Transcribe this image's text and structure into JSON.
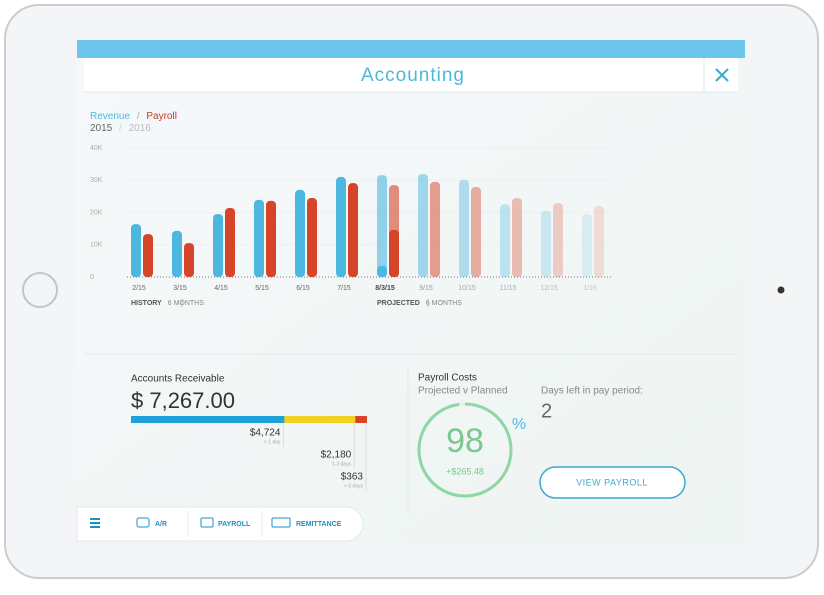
{
  "app": {
    "title": "Accounting"
  },
  "chart_data": {
    "type": "bar",
    "legend": {
      "separator": "/",
      "years": [
        "2015",
        "2016"
      ]
    },
    "categories": [
      "2/15",
      "3/15",
      "4/15",
      "5/15",
      "6/15",
      "7/15",
      "8/3/15",
      "9/15",
      "10/15",
      "11/15",
      "12/15",
      "1/16"
    ],
    "series": [
      {
        "name": "Revenue",
        "color": "#4cb8e0",
        "values": [
          16.4,
          14.3,
          19.5,
          23.9,
          27,
          31,
          31.6,
          31.9,
          30.1,
          22.6,
          20.5,
          19.5
        ],
        "partial_values": [
          null,
          null,
          null,
          null,
          null,
          null,
          3.4,
          null,
          null,
          null,
          null,
          null
        ]
      },
      {
        "name": "Payroll",
        "color": "#d6452a",
        "values": [
          13.3,
          10.5,
          21.4,
          23.6,
          24.5,
          29.1,
          28.5,
          29.5,
          27.9,
          24.5,
          22.9,
          22
        ],
        "partial_values": [
          null,
          null,
          null,
          null,
          null,
          null,
          14.6,
          null,
          null,
          null,
          null,
          null
        ]
      }
    ],
    "projected_from": 6,
    "ylim": [
      0,
      40
    ],
    "yticks": [
      {
        "value": 0,
        "label": "0"
      },
      {
        "value": 10,
        "label": "10K"
      },
      {
        "value": 20,
        "label": "20K"
      },
      {
        "value": 30,
        "label": "30K"
      },
      {
        "value": 40,
        "label": "40K"
      }
    ],
    "grid": true,
    "sections": [
      {
        "label": "HISTORY",
        "span": "6 MONTHS"
      },
      {
        "label": "PROJECTED",
        "span": "6 MONTHS"
      }
    ]
  },
  "receivable": {
    "title": "Accounts Receivable",
    "total": "$ 7,267.00",
    "segments": [
      {
        "value": 4724,
        "value_label": "$4,724",
        "note": "< 1 day",
        "color": "#1ea0d8"
      },
      {
        "value": 2180,
        "value_label": "$2,180",
        "note": "1-3 days",
        "color": "#f2d321"
      },
      {
        "value": 363,
        "value_label": "$363",
        "note": "> 3 days",
        "color": "#d6452a"
      }
    ]
  },
  "payroll": {
    "title": "Payroll Costs",
    "subtitle": "Projected v Planned",
    "percent": 98,
    "unit": "%",
    "delta": "+$265.48",
    "days_label": "Days left in pay period:",
    "days": 2,
    "button": "VIEW PAYROLL"
  },
  "nav": [
    "A/R",
    "PAYROLL",
    "REMITTANCE"
  ]
}
